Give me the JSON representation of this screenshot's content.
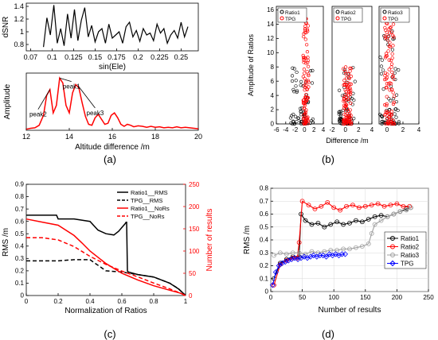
{
  "colors": {
    "black": "#000000",
    "red": "#ff0000",
    "gray": "#a0a0a0",
    "blue": "#0000ff",
    "grid": "#d8d8d8"
  },
  "panel_labels": [
    "(a)",
    "(b)",
    "(c)",
    "(d)"
  ],
  "chart_data": [
    {
      "id": "a1",
      "type": "line",
      "xlabel": "sin(Ele)",
      "ylabel": "dSNR",
      "xlim": [
        0.07,
        0.27
      ],
      "ylim": [
        0.7,
        1.45
      ],
      "xticks": [
        "0.07",
        "0.1",
        "0.125",
        "0.15",
        "0.175",
        "0.2",
        "0.225",
        "0.25"
      ],
      "xtick_values": [
        0.075,
        0.1,
        0.125,
        0.15,
        0.175,
        0.2,
        0.225,
        0.25
      ],
      "yticks": [
        "0.8",
        "1",
        "1.2",
        "1.4"
      ],
      "ytick_values": [
        0.8,
        1.0,
        1.2,
        1.4
      ],
      "series": [
        {
          "x": [
            0.09,
            0.094,
            0.098,
            0.102,
            0.106,
            0.11,
            0.114,
            0.118,
            0.122,
            0.126,
            0.13,
            0.134,
            0.138,
            0.142,
            0.146,
            0.15,
            0.154,
            0.158,
            0.162,
            0.166,
            0.17,
            0.174,
            0.178,
            0.182,
            0.186,
            0.19,
            0.194,
            0.198,
            0.202,
            0.206,
            0.21,
            0.214,
            0.218,
            0.222,
            0.226,
            0.23,
            0.234,
            0.238,
            0.242,
            0.246,
            0.25,
            0.254,
            0.258
          ],
          "y": [
            0.76,
            1.22,
            0.95,
            1.42,
            0.82,
            1.05,
            0.78,
            1.28,
            0.9,
            1.35,
            0.86,
            1.18,
            1.38,
            0.92,
            1.1,
            0.84,
            1.0,
            1.05,
            0.82,
            1.12,
            0.9,
            0.95,
            1.0,
            0.82,
            1.08,
            1.15,
            0.92,
            1.02,
            0.85,
            1.05,
            0.95,
            0.98,
            0.86,
            1.12,
            0.98,
            1.05,
            0.82,
            0.95,
            1.02,
            0.9,
            1.15,
            0.92,
            1.08
          ]
        }
      ]
    },
    {
      "id": "a2",
      "type": "line",
      "xlabel": "Altitude difference  /m",
      "ylabel": "Amplitude",
      "xlim": [
        12,
        20
      ],
      "ylim": [
        0,
        1.15
      ],
      "xticks": [
        "12",
        "14",
        "16",
        "18",
        "20"
      ],
      "xtick_values": [
        12,
        14,
        16,
        18,
        20
      ],
      "series": [
        {
          "x": [
            12.0,
            12.2,
            12.4,
            12.6,
            12.8,
            12.95,
            13.1,
            13.25,
            13.4,
            13.55,
            13.7,
            13.85,
            14.0,
            14.15,
            14.3,
            14.45,
            14.6,
            14.75,
            14.9,
            15.05,
            15.2,
            15.35,
            15.5,
            15.65,
            15.8,
            15.95,
            16.1,
            16.25,
            16.4,
            16.55,
            16.7,
            16.85,
            17.0,
            17.2,
            17.4,
            17.6,
            17.8,
            18.0,
            18.2,
            18.4,
            18.6,
            18.8,
            19.0,
            19.2,
            19.4,
            19.6,
            19.8,
            20.0
          ],
          "y": [
            0.02,
            0.04,
            0.05,
            0.1,
            0.3,
            0.7,
            0.82,
            0.35,
            0.5,
            1.05,
            0.95,
            0.5,
            0.35,
            0.75,
            0.92,
            0.85,
            0.55,
            0.28,
            0.12,
            0.1,
            0.25,
            0.32,
            0.22,
            0.12,
            0.14,
            0.3,
            0.35,
            0.25,
            0.12,
            0.08,
            0.12,
            0.1,
            0.07,
            0.09,
            0.08,
            0.06,
            0.08,
            0.06,
            0.07,
            0.05,
            0.06,
            0.05,
            0.07,
            0.05,
            0.06,
            0.05,
            0.04,
            0.03
          ]
        }
      ],
      "annotations": [
        {
          "text": "peak1",
          "x": 13.55,
          "y": 1.05,
          "tx": 14.1,
          "ty": 0.98
        },
        {
          "text": "peak2",
          "x": 13.1,
          "y": 0.82,
          "tx": 12.55,
          "ty": 0.42
        },
        {
          "text": "peak3",
          "x": 14.4,
          "y": 0.9,
          "tx": 15.2,
          "ty": 0.45
        }
      ]
    },
    {
      "id": "b",
      "type": "scatter",
      "ylabel": "Amplitude of Ratios",
      "xlabel": "Difference /m",
      "ylim": [
        0,
        16.5
      ],
      "yticks": [
        "0",
        "2",
        "4",
        "6",
        "8",
        "10",
        "12",
        "14",
        "16"
      ],
      "ytick_values": [
        0,
        2,
        4,
        6,
        8,
        10,
        12,
        14,
        16
      ],
      "subplots": [
        {
          "legend": [
            "Ratio1",
            "TPG"
          ],
          "xlim": [
            -6,
            4
          ],
          "xticks": [
            "-6",
            "-4",
            "-2",
            "0",
            "2",
            "4"
          ],
          "xtick_values": [
            -6,
            -4,
            -2,
            0,
            2,
            4
          ]
        },
        {
          "legend": [
            "Ratio2",
            "TPG"
          ],
          "xlim": [
            -2,
            4
          ],
          "xticks": [
            "-2",
            "0",
            "2",
            "4"
          ],
          "xtick_values": [
            -2,
            0,
            2,
            4
          ]
        },
        {
          "legend": [
            "Ratio3",
            "TPG"
          ],
          "xlim": [
            -1,
            4
          ],
          "xticks": [
            "0",
            "2",
            "4"
          ],
          "xtick_values": [
            0,
            2,
            4
          ]
        }
      ]
    },
    {
      "id": "c",
      "type": "line",
      "xlabel": "Normalization of Ratios",
      "ylabel": "RMS /m",
      "y2label": "Number of results",
      "xlim": [
        0,
        1
      ],
      "ylim": [
        0,
        0.9
      ],
      "y2lim": [
        0,
        250
      ],
      "xticks": [
        "0",
        "0.2",
        "0.4",
        "0.6",
        "0.8",
        "1"
      ],
      "xtick_values": [
        0,
        0.2,
        0.4,
        0.6,
        0.8,
        1
      ],
      "yticks": [
        "0",
        "0.1",
        "0.2",
        "0.3",
        "0.4",
        "0.5",
        "0.6",
        "0.7",
        "0.8",
        "0.9"
      ],
      "ytick_values": [
        0,
        0.1,
        0.2,
        0.3,
        0.4,
        0.5,
        0.6,
        0.7,
        0.8,
        0.9
      ],
      "y2ticks": [
        "0",
        "50",
        "100",
        "150",
        "200",
        "250"
      ],
      "y2tick_values": [
        0,
        50,
        100,
        150,
        200,
        250
      ],
      "legend": [
        "Ratio1__RMS",
        "TPG__RMS",
        "Ratio1__NoRs",
        "TPG__NoRs"
      ],
      "series": [
        {
          "name": "Ratio1__RMS",
          "axis": "left",
          "x": [
            0,
            0.1,
            0.19,
            0.2,
            0.3,
            0.4,
            0.45,
            0.5,
            0.55,
            0.58,
            0.6,
            0.62,
            0.63,
            0.635,
            0.64,
            0.7,
            0.8,
            0.9,
            0.96,
            1.0
          ],
          "y": [
            0.65,
            0.65,
            0.65,
            0.62,
            0.62,
            0.6,
            0.53,
            0.5,
            0.49,
            0.52,
            0.55,
            0.58,
            0.6,
            0.2,
            0.19,
            0.17,
            0.15,
            0.1,
            0.05,
            0.0
          ]
        },
        {
          "name": "TPG__RMS",
          "axis": "left",
          "x": [
            0,
            0.1,
            0.2,
            0.3,
            0.4,
            0.5,
            0.6,
            0.7,
            0.8,
            0.9,
            0.95,
            1.0
          ],
          "y": [
            0.28,
            0.28,
            0.28,
            0.29,
            0.29,
            0.2,
            0.19,
            0.17,
            0.15,
            0.1,
            0.06,
            0.0
          ]
        },
        {
          "name": "Ratio1__NoRs",
          "axis": "right",
          "x": [
            0,
            0.1,
            0.2,
            0.3,
            0.35,
            0.4,
            0.5,
            0.6,
            0.7,
            0.8,
            0.9,
            0.97,
            1.0
          ],
          "y": [
            172,
            165,
            158,
            135,
            118,
            100,
            72,
            50,
            35,
            22,
            12,
            5,
            0
          ]
        },
        {
          "name": "TPG__NoRs",
          "axis": "right",
          "x": [
            0,
            0.1,
            0.2,
            0.3,
            0.4,
            0.5,
            0.6,
            0.7,
            0.8,
            0.9,
            0.97,
            1.0
          ],
          "y": [
            130,
            130,
            125,
            110,
            88,
            70,
            55,
            42,
            28,
            15,
            5,
            0
          ]
        }
      ]
    },
    {
      "id": "d",
      "type": "line",
      "xlabel": "Number of results",
      "ylabel": "RMS /m",
      "xlim": [
        0,
        250
      ],
      "ylim": [
        0,
        0.8
      ],
      "xticks": [
        "0",
        "50",
        "100",
        "150",
        "200",
        "250"
      ],
      "xtick_values": [
        0,
        50,
        100,
        150,
        200,
        250
      ],
      "yticks": [
        "0",
        "0.1",
        "0.2",
        "0.3",
        "0.4",
        "0.5",
        "0.6",
        "0.7",
        "0.8"
      ],
      "ytick_values": [
        0,
        0.1,
        0.2,
        0.3,
        0.4,
        0.5,
        0.6,
        0.7,
        0.8
      ],
      "legend": [
        "Ratio1",
        "Ratio2",
        "Ratio3",
        "TPG"
      ],
      "series": [
        {
          "name": "Ratio1",
          "color": "black",
          "marker": "circle",
          "x": [
            5,
            15,
            25,
            35,
            45,
            48,
            55,
            65,
            75,
            85,
            95,
            105,
            115,
            125,
            135,
            145,
            155,
            165,
            175,
            185,
            195,
            205,
            215,
            222
          ],
          "y": [
            0.1,
            0.22,
            0.25,
            0.27,
            0.27,
            0.6,
            0.55,
            0.52,
            0.53,
            0.5,
            0.52,
            0.54,
            0.52,
            0.53,
            0.55,
            0.54,
            0.56,
            0.58,
            0.59,
            0.58,
            0.6,
            0.62,
            0.64,
            0.65
          ]
        },
        {
          "name": "Ratio2",
          "color": "red",
          "marker": "circle",
          "x": [
            5,
            15,
            25,
            35,
            42,
            45,
            50,
            60,
            70,
            80,
            90,
            100,
            110,
            120,
            130,
            140,
            150,
            160,
            170,
            180,
            190,
            200,
            210,
            220
          ],
          "y": [
            0.05,
            0.21,
            0.24,
            0.26,
            0.26,
            0.38,
            0.7,
            0.67,
            0.64,
            0.66,
            0.69,
            0.65,
            0.63,
            0.66,
            0.67,
            0.65,
            0.66,
            0.67,
            0.68,
            0.66,
            0.67,
            0.68,
            0.66,
            0.66
          ]
        },
        {
          "name": "Ratio3",
          "color": "gray",
          "marker": "circle",
          "x": [
            5,
            15,
            25,
            35,
            45,
            55,
            65,
            75,
            85,
            95,
            105,
            115,
            125,
            135,
            145,
            155,
            160,
            165,
            175,
            185,
            195,
            205,
            215,
            222
          ],
          "y": [
            0.28,
            0.3,
            0.29,
            0.3,
            0.3,
            0.29,
            0.31,
            0.3,
            0.31,
            0.32,
            0.32,
            0.33,
            0.33,
            0.34,
            0.35,
            0.37,
            0.45,
            0.52,
            0.55,
            0.58,
            0.6,
            0.62,
            0.63,
            0.65
          ]
        },
        {
          "name": "TPG",
          "color": "blue",
          "marker": "diamond",
          "x": [
            3,
            8,
            13,
            18,
            23,
            28,
            33,
            38,
            43,
            48,
            53,
            58,
            63,
            68,
            73,
            78,
            83,
            88,
            93,
            98,
            103,
            108,
            113,
            118
          ],
          "y": [
            0.05,
            0.15,
            0.2,
            0.22,
            0.23,
            0.24,
            0.25,
            0.26,
            0.25,
            0.26,
            0.27,
            0.26,
            0.27,
            0.28,
            0.27,
            0.28,
            0.28,
            0.27,
            0.29,
            0.28,
            0.29,
            0.28,
            0.29,
            0.29
          ]
        }
      ]
    }
  ]
}
